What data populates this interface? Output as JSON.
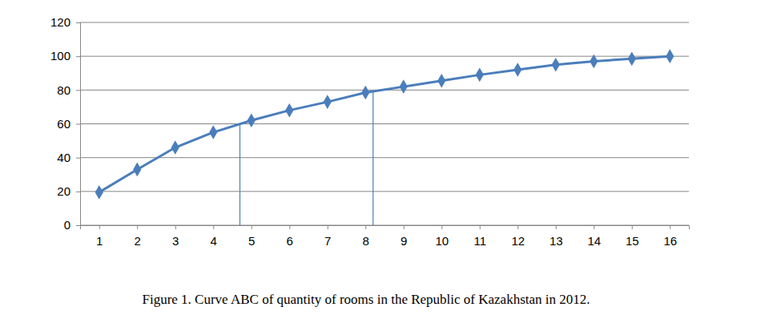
{
  "chart_data": {
    "type": "line",
    "title": "Figure 1. Curve ABC of quantity of rooms in the Republic of Kazakhstan in 2012.",
    "x": [
      1,
      2,
      3,
      4,
      5,
      6,
      7,
      8,
      9,
      10,
      11,
      12,
      13,
      14,
      15,
      16
    ],
    "values": [
      19.5,
      33,
      46,
      55,
      62,
      68,
      73,
      78.5,
      82,
      85.5,
      89,
      92,
      95,
      97,
      98.5,
      100
    ],
    "color": "#4a7ebb",
    "marker": "diamond",
    "xlim": [
      0.5,
      16.5
    ],
    "xticks": [
      1,
      2,
      3,
      4,
      5,
      6,
      7,
      8,
      9,
      10,
      11,
      12,
      13,
      14,
      15,
      16
    ],
    "ylim": [
      0,
      120
    ],
    "yticks": [
      0,
      20,
      40,
      60,
      80,
      100,
      120
    ],
    "grid": true,
    "reference_lines": [
      {
        "x": 4.7,
        "y": 60
      },
      {
        "x": 8.2,
        "y": 79
      }
    ]
  }
}
